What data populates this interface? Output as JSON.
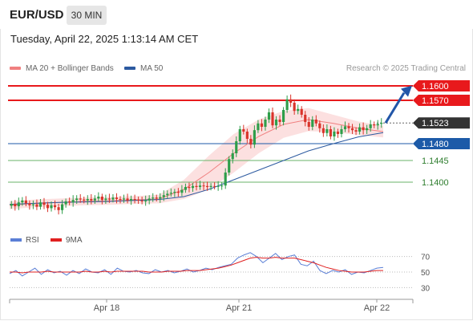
{
  "header": {
    "pair": "EUR/USD",
    "timeframe": "30 MIN",
    "datetime": "Tuesday, April 22, 2025 1:13:14 AM CET",
    "research": "Research © 2025 Trading Central"
  },
  "legend": {
    "ma20": "MA 20 + Bollinger Bands",
    "ma50": "MA 50",
    "rsi": "RSI",
    "rsi_ma": "9MA"
  },
  "colors": {
    "ma20": "#f08080",
    "ma50": "#2c5aa0",
    "bull": "#2e9e4a",
    "bear": "#d9342b",
    "resistance": "#e8191c",
    "pivot": "#1c5aa8",
    "support": "#6ab36a",
    "arrow": "#2256a8",
    "last_price": "#333333"
  },
  "chart_data": [
    {
      "type": "candlestick",
      "title": "EUR/USD 30 MIN",
      "x_labels": [
        "Apr 18",
        "Apr 21",
        "Apr 22"
      ],
      "ylim": [
        1.132,
        1.162
      ],
      "series": [
        {
          "name": "MA 20 + Bollinger Bands",
          "values": [
            1.1352,
            1.1356,
            1.1358,
            1.136,
            1.1361,
            1.1363,
            1.1365,
            1.1385,
            1.142,
            1.146,
            1.1495,
            1.152,
            1.153,
            1.1522,
            1.1512,
            1.1505
          ]
        },
        {
          "name": "MA 50",
          "values": [
            1.1354,
            1.1356,
            1.1358,
            1.1359,
            1.136,
            1.1362,
            1.1364,
            1.137,
            1.1385,
            1.1405,
            1.1425,
            1.1445,
            1.1465,
            1.148,
            1.1494,
            1.1503
          ]
        }
      ],
      "closes": [
        1.1355,
        1.135,
        1.1358,
        1.1362,
        1.1356,
        1.1352,
        1.1354,
        1.1349,
        1.1358,
        1.1353,
        1.1346,
        1.1352,
        1.1348,
        1.1342,
        1.1354,
        1.136,
        1.1358,
        1.1363,
        1.1366,
        1.1364,
        1.1362,
        1.1365,
        1.1362,
        1.1366,
        1.137,
        1.1363,
        1.1366,
        1.1364,
        1.1368,
        1.1365,
        1.1364,
        1.1366,
        1.1362,
        1.1365,
        1.1364,
        1.1362,
        1.136,
        1.1362,
        1.1366,
        1.1368,
        1.1366,
        1.1369,
        1.1373,
        1.1376,
        1.1378,
        1.138,
        1.1378,
        1.1384,
        1.139,
        1.1388,
        1.1392,
        1.139,
        1.1393,
        1.1392,
        1.139,
        1.1392,
        1.1391,
        1.1392,
        1.1393,
        1.142,
        1.1448,
        1.146,
        1.1485,
        1.151,
        1.1505,
        1.149,
        1.1478,
        1.1508,
        1.1522,
        1.1515,
        1.153,
        1.1545,
        1.1518,
        1.153,
        1.1525,
        1.155,
        1.1572,
        1.1565,
        1.1548,
        1.1552,
        1.154,
        1.1525,
        1.1515,
        1.153,
        1.1522,
        1.1512,
        1.1502,
        1.151,
        1.1495,
        1.1505,
        1.15,
        1.151,
        1.1516,
        1.1512,
        1.1508,
        1.1505,
        1.1514,
        1.1508,
        1.1512,
        1.152,
        1.1518,
        1.1521,
        1.1523
      ]
    },
    {
      "type": "line",
      "title": "RSI",
      "ylim": [
        20,
        80
      ],
      "y_ticks": [
        70,
        50,
        30
      ],
      "series": [
        {
          "name": "RSI",
          "values": [
            48,
            52,
            45,
            50,
            55,
            47,
            53,
            49,
            51,
            46,
            52,
            48,
            54,
            50,
            49,
            53,
            47,
            55,
            51,
            50,
            52,
            49,
            48,
            53,
            50,
            52,
            49,
            51,
            54,
            50,
            52,
            55,
            53,
            56,
            58,
            60,
            68,
            72,
            75,
            70,
            62,
            68,
            74,
            66,
            70,
            72,
            60,
            58,
            64,
            52,
            48,
            52,
            50,
            53,
            47,
            50,
            49,
            52,
            55,
            56
          ]
        },
        {
          "name": "9MA",
          "values": [
            50,
            50,
            49,
            50,
            50,
            50,
            51,
            50,
            50,
            50,
            50,
            50,
            51,
            50,
            50,
            51,
            50,
            51,
            51,
            51,
            51,
            51,
            50,
            50,
            50,
            51,
            51,
            51,
            52,
            52,
            52,
            53,
            54,
            55,
            57,
            59,
            62,
            65,
            68,
            69,
            68,
            68,
            69,
            68,
            68,
            68,
            66,
            64,
            62,
            59,
            56,
            54,
            52,
            51,
            50,
            50,
            50,
            51,
            52,
            52
          ]
        }
      ]
    }
  ],
  "levels": [
    {
      "label": "1.1600",
      "value": 1.16,
      "kind": "resistance"
    },
    {
      "label": "1.1570",
      "value": 1.157,
      "kind": "resistance"
    },
    {
      "label": "1.1523",
      "value": 1.1523,
      "kind": "last"
    },
    {
      "label": "1.1480",
      "value": 1.148,
      "kind": "pivot"
    },
    {
      "label": "1.1445",
      "value": 1.1445,
      "kind": "support"
    },
    {
      "label": "1.1400",
      "value": 1.14,
      "kind": "support"
    }
  ]
}
